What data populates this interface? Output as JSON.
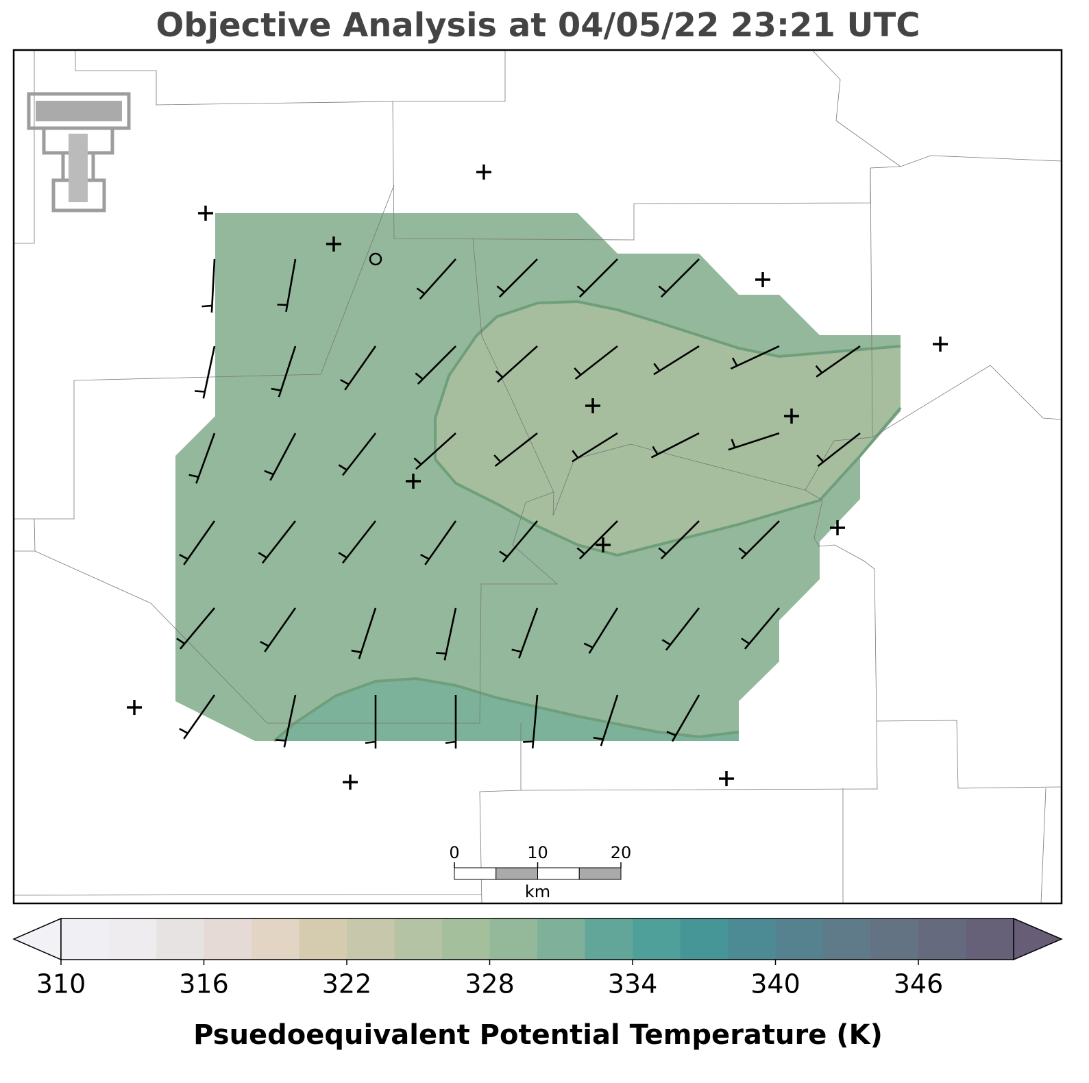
{
  "title": "Objective Analysis at 04/05/22 23:21 UTC",
  "colorbar": {
    "label": "Psuedoequivalent Potential Temperature (K)",
    "range": [
      310,
      350
    ],
    "ticks": [
      310,
      316,
      322,
      328,
      334,
      340,
      346
    ],
    "colors": [
      "#f0eff4",
      "#eeecee",
      "#e8e3e3",
      "#e6dad6",
      "#e2d5c3",
      "#d5ccb0",
      "#c6c7ab",
      "#b4c3a3",
      "#a4bf9b",
      "#93b89a",
      "#7fb09a",
      "#62a699",
      "#4fa09a",
      "#479697",
      "#4c8b94",
      "#568290",
      "#5f7a88",
      "#647383",
      "#656a7e",
      "#666079"
    ],
    "under_color": "#f2f1f6",
    "over_color": "#675d76"
  },
  "scale_bar": {
    "ticks": [
      0,
      10,
      20
    ],
    "unit": "km",
    "range": [
      0,
      20
    ]
  }
}
